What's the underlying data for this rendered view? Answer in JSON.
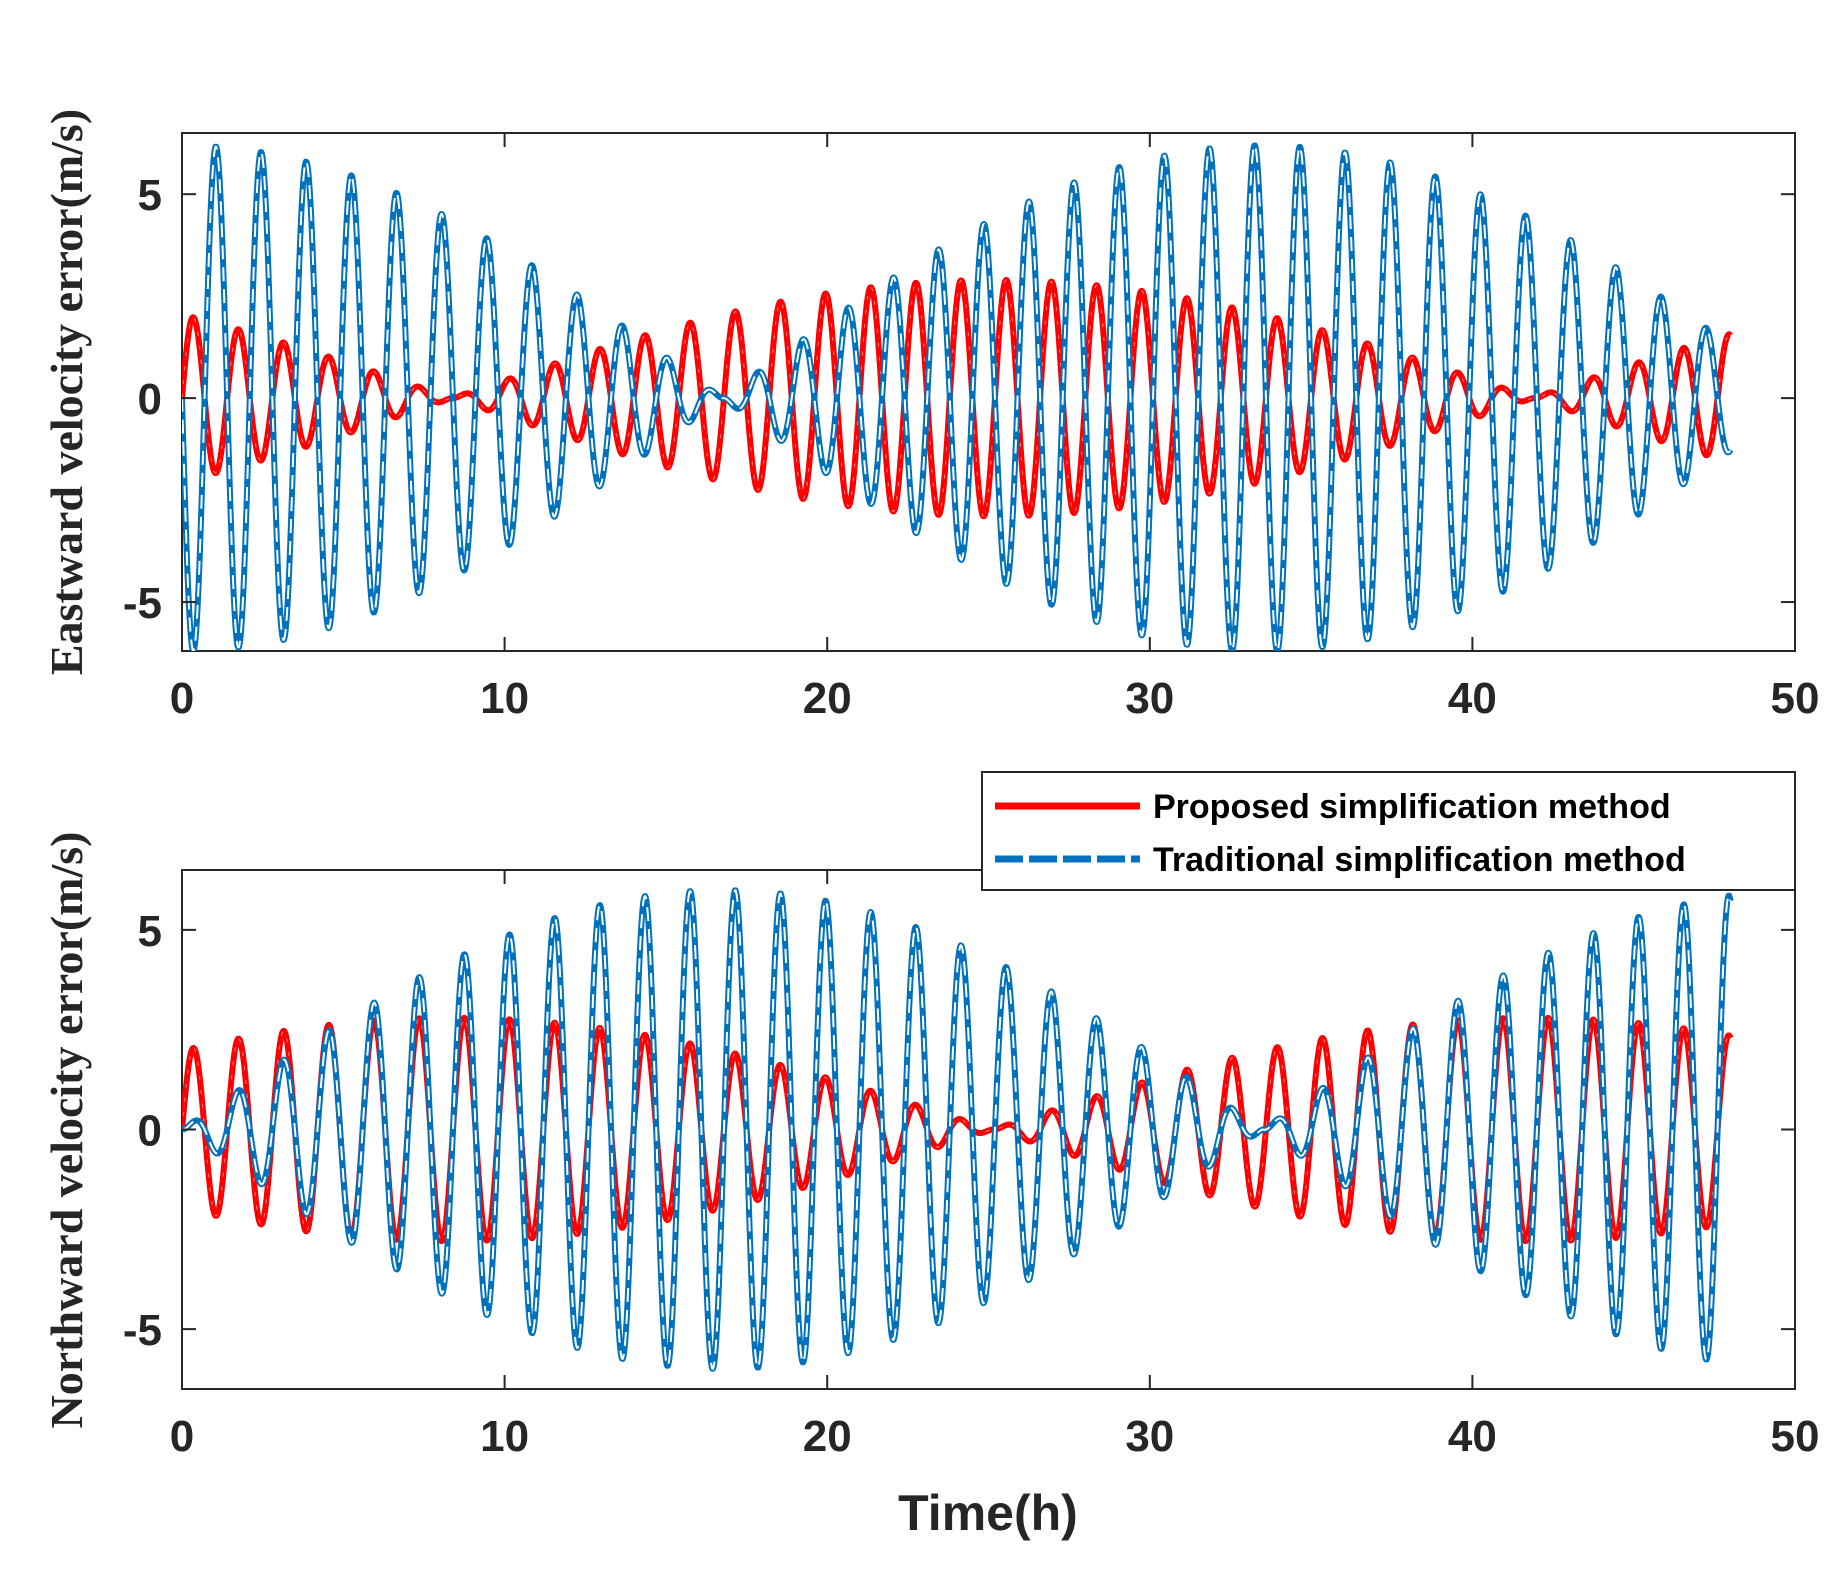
{
  "chart_data": [
    {
      "type": "line",
      "id": "top",
      "xlabel": "",
      "ylabel": "Eastward velocity error(m/s)",
      "xlim": [
        0,
        50
      ],
      "ylim": [
        -6.2,
        6.5
      ],
      "xticks": [
        0,
        10,
        20,
        30,
        40,
        50
      ],
      "yticks": [
        -5,
        0,
        5
      ],
      "xtick_labels": [
        "0",
        "10",
        "20",
        "30",
        "40",
        "50"
      ],
      "ytick_labels": [
        "-5",
        "0",
        "5"
      ],
      "grid": false,
      "legend": null,
      "series": [
        {
          "name": "Proposed simplification method",
          "style": "solid",
          "color": "#ff0000",
          "x_range": [
            0,
            48
          ],
          "approx_model": {
            "carrier_period_h": 1.4,
            "envelope_amplitude": 2.9,
            "envelope_period_h": 33.5,
            "envelope_phase": 0.25,
            "phase": 0.0
          }
        },
        {
          "name": "Traditional simplification method",
          "style": "dashed",
          "color": "#0072bd",
          "x_range": [
            0,
            48
          ],
          "approx_model": {
            "carrier_period_h": 1.4,
            "envelope_amplitude": 6.2,
            "envelope_period_h": 33.5,
            "envelope_phase": 0.0,
            "phase": 3.14
          }
        }
      ]
    },
    {
      "type": "line",
      "id": "bottom",
      "xlabel": "Time(h)",
      "ylabel": "Northward velocity error(m/s)",
      "xlim": [
        0,
        50
      ],
      "ylim": [
        -6.5,
        6.5
      ],
      "xticks": [
        0,
        10,
        20,
        30,
        40,
        50
      ],
      "yticks": [
        -5,
        0,
        5
      ],
      "xtick_labels": [
        "0",
        "10",
        "20",
        "30",
        "40",
        "50"
      ],
      "ytick_labels": [
        "-5",
        "0",
        "5"
      ],
      "grid": false,
      "legend": "top-right",
      "series": [
        {
          "name": "Proposed simplification method",
          "style": "solid",
          "color": "#ff0000",
          "x_range": [
            0,
            48
          ],
          "approx_model": {
            "carrier_period_h": 1.4,
            "envelope_amplitude": 2.8,
            "envelope_period_h": 33.5,
            "envelope_phase": -0.25,
            "phase": 0.0
          }
        },
        {
          "name": "Traditional simplification method",
          "style": "dashed",
          "color": "#0072bd",
          "x_range": [
            0,
            48
          ],
          "approx_model": {
            "carrier_period_h": 1.4,
            "envelope_amplitude": 6.0,
            "envelope_period_h": 33.5,
            "envelope_phase": 0.5,
            "phase": 0.0
          }
        }
      ]
    }
  ],
  "legend": {
    "items": [
      {
        "label": "Proposed simplification method",
        "color": "#ff0000",
        "style": "solid"
      },
      {
        "label": "Traditional simplification method",
        "color": "#0072bd",
        "style": "dashed"
      }
    ]
  }
}
